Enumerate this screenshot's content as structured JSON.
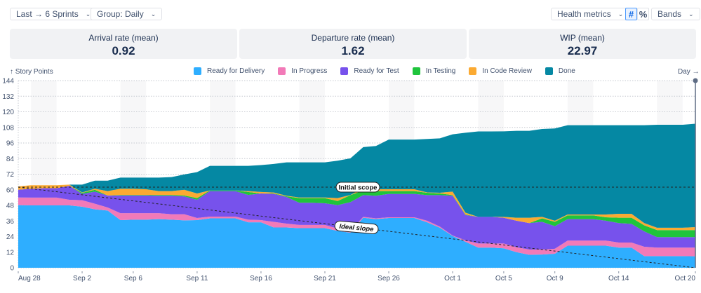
{
  "toolbar": {
    "range": "Last → 6 Sprints",
    "group": "Group: Daily",
    "health": "Health metrics",
    "count_icon": "#",
    "percent_icon": "%",
    "bands": "Bands"
  },
  "metrics": [
    {
      "title": "Arrival rate (mean)",
      "value": "0.92"
    },
    {
      "title": "Departure rate (mean)",
      "value": "1.62"
    },
    {
      "title": "WIP (mean)",
      "value": "22.97"
    }
  ],
  "chart_data": {
    "type": "area",
    "stacked": true,
    "ylabel": "↑ Story Points",
    "xlabel": "Day →",
    "ylim": [
      0,
      144
    ],
    "yticks": [
      0,
      12,
      24,
      36,
      48,
      60,
      72,
      84,
      96,
      108,
      120,
      132,
      144
    ],
    "xtick_labels": [
      "Aug 28",
      "Sep 2",
      "Sep 6",
      "Sep 11",
      "Sep 16",
      "Sep 21",
      "Sep 26",
      "Oct 1",
      "Oct 5",
      "Oct 9",
      "Oct 14",
      "Oct 20"
    ],
    "grid": true,
    "legend": "top",
    "categories": [
      "Aug 28",
      "Aug 29",
      "Aug 30",
      "Aug 31",
      "Sep 1",
      "Sep 2",
      "Sep 3",
      "Sep 4",
      "Sep 5",
      "Sep 6",
      "Sep 7",
      "Sep 8",
      "Sep 9",
      "Sep 10",
      "Sep 11",
      "Sep 12",
      "Sep 13",
      "Sep 14",
      "Sep 15",
      "Sep 16",
      "Sep 17",
      "Sep 18",
      "Sep 19",
      "Sep 20",
      "Sep 21",
      "Sep 22",
      "Sep 23",
      "Sep 24",
      "Sep 25",
      "Sep 26",
      "Sep 27",
      "Sep 28",
      "Sep 29",
      "Sep 30",
      "Oct 1",
      "Oct 2",
      "Oct 3",
      "Oct 4",
      "Oct 5",
      "Oct 6",
      "Oct 7",
      "Oct 8",
      "Oct 9",
      "Oct 10",
      "Oct 11",
      "Oct 12",
      "Oct 13",
      "Oct 14",
      "Oct 15",
      "Oct 16",
      "Oct 17",
      "Oct 18",
      "Oct 19",
      "Oct 20"
    ],
    "series": [
      {
        "name": "Ready for Delivery",
        "color": "#2eaeff",
        "values": [
          48.2,
          48,
          48,
          48,
          48,
          47,
          45,
          44,
          36.7,
          37,
          37,
          37.4,
          37,
          36.5,
          36.7,
          38,
          38,
          38,
          35,
          35,
          31,
          31,
          30.5,
          30.5,
          30.5,
          28.4,
          27,
          38.5,
          37.4,
          38.3,
          38.3,
          38.3,
          35,
          30.8,
          24.5,
          20,
          15.5,
          15.5,
          15,
          12,
          10,
          10.2,
          10.8,
          17,
          17,
          17,
          17,
          15.5,
          15.5,
          9,
          9,
          9,
          9,
          8.8
        ]
      },
      {
        "name": "In Progress",
        "color": "#f27ab8",
        "values": [
          5.9,
          6,
          6,
          6,
          4.3,
          5,
          4.3,
          2.4,
          5.3,
          5,
          5,
          4.6,
          4.2,
          4.7,
          1.6,
          1.4,
          1.4,
          1.4,
          2,
          1.7,
          4.3,
          3,
          2.5,
          2.5,
          2.5,
          1.8,
          1.4,
          0.7,
          0.6,
          0.5,
          0.5,
          0.5,
          1.2,
          0.9,
          0.3,
          1.2,
          3.2,
          3.2,
          3.7,
          3.8,
          4,
          3.8,
          3.8,
          3.9,
          3.9,
          3.9,
          3.9,
          3.9,
          3.9,
          7.2,
          6.5,
          6.5,
          6.5,
          6.7
        ]
      },
      {
        "name": "Ready for Test",
        "color": "#7752ec",
        "values": [
          5.9,
          6.8,
          7.2,
          7.2,
          10.8,
          4.8,
          9.3,
          9.2,
          13.6,
          13.6,
          13.6,
          13.4,
          14.2,
          13.7,
          14,
          19.6,
          19.6,
          19.6,
          19,
          20.5,
          21.5,
          20.5,
          17,
          17,
          16.6,
          18,
          22.1,
          16.7,
          17.4,
          18,
          18,
          18,
          19.7,
          24.2,
          30.6,
          19.4,
          20.5,
          20.5,
          19.8,
          20.4,
          20.4,
          21.3,
          17.4,
          16.5,
          16.5,
          16.5,
          15.3,
          15,
          14.4,
          11.8,
          8.1,
          8.1,
          8.1,
          8.1
        ]
      },
      {
        "name": "In Testing",
        "color": "#1fc43c",
        "values": [
          0,
          0,
          0,
          0,
          0,
          0.9,
          1.4,
          0,
          0.4,
          0.4,
          0.4,
          0.6,
          0.6,
          0.7,
          1.3,
          0.5,
          0.5,
          0.5,
          2.3,
          0,
          0.4,
          0.5,
          3.6,
          3.6,
          4,
          3.2,
          5.4,
          3.6,
          3.6,
          2.2,
          2.2,
          2.2,
          1.8,
          1.3,
          0.5,
          0.4,
          0,
          0,
          0,
          0,
          0,
          2.7,
          3.3,
          2.9,
          2.9,
          2.9,
          2.6,
          4.1,
          4.7,
          4.6,
          5.4,
          5.4,
          5.4,
          5.4
        ]
      },
      {
        "name": "In Code Review",
        "color": "#fbaa32",
        "values": [
          2.6,
          2.7,
          2.3,
          2.3,
          0.9,
          0.3,
          0.8,
          3.4,
          4.8,
          4.8,
          4.4,
          3,
          3,
          4.4,
          3.6,
          0,
          0,
          0,
          0.7,
          1.1,
          0.7,
          0.4,
          0.5,
          0.5,
          0.5,
          2.2,
          0.1,
          1.8,
          1.4,
          1.4,
          1.4,
          1.4,
          0.3,
          0.5,
          2.7,
          1.4,
          0,
          0,
          0.7,
          2.3,
          4.1,
          1.2,
          0.9,
          0.7,
          0.7,
          0.7,
          2.2,
          3,
          3,
          1.8,
          1.8,
          1.8,
          1.8,
          2.3
        ]
      },
      {
        "name": "Done",
        "color": "#0588a3",
        "values": [
          0,
          0,
          0,
          0,
          0,
          6,
          6.2,
          8,
          8.6,
          8.6,
          9,
          10.4,
          10.8,
          11.8,
          16.4,
          18.9,
          18.9,
          18.9,
          19.4,
          20.7,
          22,
          25.7,
          27,
          27,
          27,
          28.8,
          28.2,
          31.5,
          33.3,
          38.2,
          38.2,
          38.2,
          41.1,
          41.9,
          44.1,
          61.5,
          65.7,
          65.7,
          65.8,
          66.9,
          66.9,
          67.6,
          71,
          68.7,
          68.7,
          68.7,
          68.7,
          68.2,
          68.2,
          75.3,
          79.2,
          79.2,
          79.2,
          79.5
        ]
      }
    ],
    "annotations": [
      {
        "label": "Initial scope",
        "type": "horizontal",
        "value": 62
      },
      {
        "label": "Ideal slope",
        "type": "line",
        "from": 62,
        "to": 0
      }
    ]
  }
}
